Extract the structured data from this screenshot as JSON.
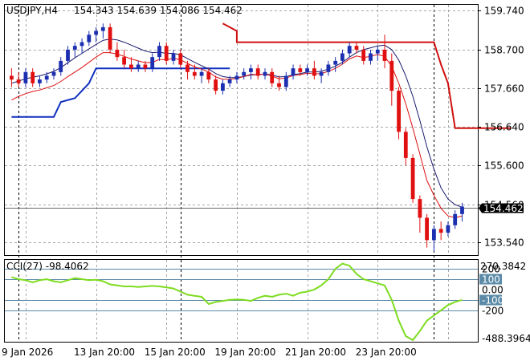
{
  "header": {
    "symbol": "USDJPY,H4",
    "ohlc": "154.343 154.639 154.086 154.462"
  },
  "price_axis": {
    "ticks": [
      "159.740",
      "158.700",
      "157.660",
      "156.640",
      "155.600",
      "154.560",
      "153.540"
    ],
    "current_price": "154.462"
  },
  "time_axis": {
    "labels": [
      "9 Jan 2026",
      "13 Jan 20:00",
      "15 Jan 20:00",
      "19 Jan 20:00",
      "21 Jan 20:00",
      "23 Jan 20:00"
    ]
  },
  "cci_panel": {
    "label": "CCI(27) -98.4062",
    "scale_max": "270.3842",
    "scale_min": "-488.3964",
    "levels": [
      "200",
      "100",
      "0.00",
      "-100",
      "-200"
    ]
  },
  "colors": {
    "bull": "#1c2fb0",
    "bear": "#e01010",
    "ma_fast": "#e01010",
    "ma_slow": "#1a1a6e",
    "stop_low": "#1030c0",
    "stop_high": "#d01010",
    "cci_line": "#7ddc1f",
    "level_line": "#5a8aa8",
    "grid": "#a8a8a8"
  },
  "chart_data": {
    "type": "candlestick",
    "price_ylim": [
      153.2,
      159.9
    ],
    "cci_ylim": [
      -488.3964,
      270.3842
    ],
    "candles": [
      [
        158.0,
        158.2,
        157.7,
        157.9
      ],
      [
        157.9,
        158.1,
        157.7,
        157.8
      ],
      [
        157.8,
        158.2,
        157.7,
        158.1
      ],
      [
        158.1,
        158.2,
        157.7,
        157.8
      ],
      [
        157.8,
        158.0,
        157.7,
        157.9
      ],
      [
        157.9,
        158.1,
        157.8,
        158.0
      ],
      [
        158.0,
        158.2,
        157.9,
        158.1
      ],
      [
        158.1,
        158.5,
        158.0,
        158.4
      ],
      [
        158.4,
        158.8,
        158.3,
        158.7
      ],
      [
        158.7,
        158.9,
        158.5,
        158.8
      ],
      [
        158.8,
        159.0,
        158.6,
        158.9
      ],
      [
        158.9,
        159.2,
        158.8,
        159.1
      ],
      [
        159.1,
        159.3,
        158.9,
        159.2
      ],
      [
        159.2,
        159.4,
        159.0,
        159.3
      ],
      [
        159.3,
        159.4,
        158.6,
        158.7
      ],
      [
        158.7,
        158.9,
        158.4,
        158.5
      ],
      [
        158.5,
        158.7,
        158.2,
        158.3
      ],
      [
        158.3,
        158.5,
        158.1,
        158.2
      ],
      [
        158.2,
        158.4,
        158.1,
        158.3
      ],
      [
        158.3,
        158.4,
        158.1,
        158.2
      ],
      [
        158.2,
        158.6,
        158.1,
        158.5
      ],
      [
        158.5,
        158.9,
        158.4,
        158.8
      ],
      [
        158.8,
        158.9,
        158.3,
        158.4
      ],
      [
        158.4,
        158.7,
        158.3,
        158.6
      ],
      [
        158.6,
        158.7,
        158.2,
        158.3
      ],
      [
        158.3,
        158.4,
        157.9,
        158.1
      ],
      [
        158.1,
        158.3,
        157.9,
        158.0
      ],
      [
        158.0,
        158.2,
        157.8,
        158.1
      ],
      [
        158.1,
        158.2,
        157.8,
        157.9
      ],
      [
        157.9,
        158.0,
        157.5,
        157.6
      ],
      [
        157.6,
        157.9,
        157.5,
        157.8
      ],
      [
        157.8,
        158.0,
        157.7,
        157.9
      ],
      [
        157.9,
        158.1,
        157.8,
        158.0
      ],
      [
        158.0,
        158.2,
        157.9,
        158.1
      ],
      [
        158.1,
        158.3,
        157.9,
        158.2
      ],
      [
        158.2,
        158.3,
        157.9,
        158.0
      ],
      [
        158.0,
        158.2,
        157.9,
        158.1
      ],
      [
        158.1,
        158.2,
        157.7,
        157.8
      ],
      [
        157.8,
        158.0,
        157.6,
        157.7
      ],
      [
        157.7,
        158.1,
        157.6,
        158.0
      ],
      [
        158.0,
        158.3,
        157.9,
        158.2
      ],
      [
        158.2,
        158.3,
        158.0,
        158.1
      ],
      [
        158.1,
        158.3,
        158.0,
        158.2
      ],
      [
        158.2,
        158.4,
        157.9,
        158.0
      ],
      [
        158.0,
        158.2,
        157.8,
        158.1
      ],
      [
        158.1,
        158.4,
        158.0,
        158.3
      ],
      [
        158.3,
        158.5,
        158.1,
        158.4
      ],
      [
        158.4,
        158.7,
        158.3,
        158.6
      ],
      [
        158.6,
        158.9,
        158.5,
        158.8
      ],
      [
        158.8,
        158.9,
        158.6,
        158.7
      ],
      [
        158.7,
        158.8,
        158.3,
        158.4
      ],
      [
        158.4,
        158.7,
        158.3,
        158.6
      ],
      [
        158.6,
        158.8,
        158.4,
        158.7
      ],
      [
        158.7,
        159.1,
        158.2,
        158.4
      ],
      [
        158.4,
        158.6,
        157.2,
        157.6
      ],
      [
        157.6,
        157.7,
        156.3,
        156.5
      ],
      [
        156.5,
        156.6,
        155.6,
        155.8
      ],
      [
        155.8,
        155.9,
        154.6,
        154.7
      ],
      [
        154.7,
        154.8,
        153.8,
        154.2
      ],
      [
        154.2,
        154.3,
        153.4,
        153.6
      ],
      [
        153.6,
        154.0,
        153.3,
        153.9
      ],
      [
        153.9,
        154.1,
        153.6,
        153.8
      ],
      [
        153.8,
        154.1,
        153.7,
        154.0
      ],
      [
        154.0,
        154.4,
        153.9,
        154.3
      ],
      [
        154.3,
        154.6,
        154.1,
        154.5
      ]
    ],
    "ma_fast": [
      157.35,
      157.45,
      157.52,
      157.58,
      157.62,
      157.68,
      157.74,
      157.85,
      157.98,
      158.1,
      158.22,
      158.36,
      158.5,
      158.62,
      158.62,
      158.58,
      158.52,
      158.45,
      158.4,
      158.35,
      158.36,
      158.44,
      158.43,
      158.47,
      158.43,
      158.33,
      158.24,
      158.18,
      158.1,
      157.97,
      157.91,
      157.91,
      157.93,
      157.98,
      158.04,
      158.03,
      158.05,
      157.99,
      157.92,
      157.94,
      158.01,
      158.03,
      158.07,
      158.05,
      158.06,
      158.12,
      158.2,
      158.31,
      158.45,
      158.53,
      158.49,
      158.52,
      158.57,
      158.52,
      158.25,
      157.8,
      157.25,
      156.6,
      155.9,
      155.2,
      154.8,
      154.45,
      154.25,
      154.2,
      154.25
    ],
    "ma_slow": [
      157.8,
      157.86,
      157.92,
      157.96,
      158.0,
      158.05,
      158.12,
      158.22,
      158.35,
      158.48,
      158.6,
      158.72,
      158.84,
      158.95,
      158.98,
      158.96,
      158.9,
      158.82,
      158.74,
      158.66,
      158.62,
      158.63,
      158.6,
      158.6,
      158.56,
      158.46,
      158.36,
      158.27,
      158.18,
      158.06,
      157.98,
      157.95,
      157.95,
      157.98,
      158.02,
      158.03,
      158.05,
      158.02,
      157.97,
      157.98,
      158.03,
      158.06,
      158.1,
      158.1,
      158.12,
      158.18,
      158.26,
      158.36,
      158.5,
      158.62,
      158.7,
      158.75,
      158.8,
      158.82,
      158.7,
      158.42,
      158.0,
      157.45,
      156.8,
      156.1,
      155.5,
      155.0,
      154.7,
      154.55,
      154.48
    ],
    "stop_low": [
      [
        0,
        156.9
      ],
      [
        6,
        156.9
      ],
      [
        7,
        157.3
      ],
      [
        9,
        157.4
      ],
      [
        10,
        157.6
      ],
      [
        11,
        157.8
      ],
      [
        12,
        158.2
      ],
      [
        31,
        158.2
      ]
    ],
    "stop_high": [
      [
        30,
        159.4
      ],
      [
        32,
        159.2
      ],
      [
        32,
        158.9
      ],
      [
        60,
        158.9
      ],
      [
        61,
        158.3
      ],
      [
        62,
        157.8
      ],
      [
        63,
        156.6
      ],
      [
        71,
        156.6
      ]
    ],
    "cci": [
      120,
      100,
      90,
      70,
      90,
      100,
      80,
      70,
      90,
      110,
      100,
      90,
      95,
      80,
      50,
      40,
      30,
      30,
      25,
      30,
      35,
      30,
      20,
      10,
      -20,
      -50,
      -60,
      -70,
      -140,
      -120,
      -110,
      -100,
      -95,
      -100,
      -110,
      -80,
      -60,
      -70,
      -50,
      -40,
      -60,
      -30,
      -20,
      0,
      40,
      100,
      200,
      250,
      230,
      150,
      100,
      80,
      60,
      40,
      -100,
      -300,
      -450,
      -488,
      -400,
      -300,
      -250,
      -200,
      -150,
      -120,
      -100
    ]
  }
}
